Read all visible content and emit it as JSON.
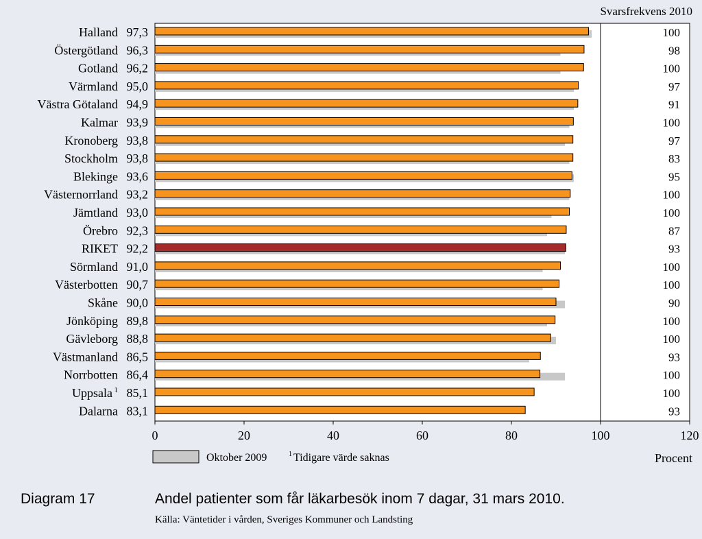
{
  "chart_data": {
    "type": "bar",
    "orientation": "horizontal",
    "categories": [
      "Halland",
      "Östergötland",
      "Gotland",
      "Värmland",
      "Västra Götaland",
      "Kalmar",
      "Kronoberg",
      "Stockholm",
      "Blekinge",
      "Västernorrland",
      "Jämtland",
      "Örebro",
      "RIKET",
      "Sörmland",
      "Västerbotten",
      "Skåne",
      "Jönköping",
      "Gävleborg",
      "Västmanland",
      "Norrbotten",
      "Uppsala",
      "Dalarna"
    ],
    "category_superscripts": [
      "",
      "",
      "",
      "",
      "",
      "",
      "",
      "",
      "",
      "",
      "",
      "",
      "",
      "",
      "",
      "",
      "",
      "",
      "",
      "",
      "1",
      ""
    ],
    "value_labels": [
      "97,3",
      "96,3",
      "96,2",
      "95,0",
      "94,9",
      "93,9",
      "93,8",
      "93,8",
      "93,6",
      "93,2",
      "93,0",
      "92,3",
      "92,2",
      "91,0",
      "90,7",
      "90,0",
      "89,8",
      "88,8",
      "86,5",
      "86,4",
      "85,1",
      "83,1"
    ],
    "series": [
      {
        "values": [
          97.3,
          96.3,
          96.2,
          95.0,
          94.9,
          93.9,
          93.8,
          93.8,
          93.6,
          93.2,
          93.0,
          92.3,
          92.2,
          91.0,
          90.7,
          90.0,
          89.8,
          88.8,
          86.5,
          86.4,
          85.1,
          83.1
        ]
      },
      {
        "name": "Oktober 2009",
        "values": [
          98,
          91,
          91,
          94,
          94,
          93,
          92,
          93,
          94,
          93,
          89,
          88,
          92,
          87,
          87,
          92,
          88,
          90,
          84,
          92,
          null,
          null
        ]
      }
    ],
    "highlight_category": "RIKET",
    "response_rate_header": "Svarsfrekvens 2010",
    "response_rates": [
      "100",
      "98",
      "100",
      "97",
      "91",
      "100",
      "97",
      "83",
      "95",
      "100",
      "100",
      "87",
      "93",
      "100",
      "100",
      "90",
      "100",
      "100",
      "93",
      "100",
      "100",
      "93"
    ],
    "xlim": [
      0,
      120
    ],
    "xticks": [
      "0",
      "20",
      "40",
      "60",
      "80",
      "100",
      "120"
    ],
    "xlabel": "Procent",
    "legend": [
      {
        "label": "Oktober 2009"
      },
      {
        "label": "Tidigare värde saknas",
        "superscript": "1"
      }
    ],
    "colors": {
      "current": "#f7941d",
      "highlight": "#a52a2a",
      "previous": "#c8c8c8",
      "background": "#e9ebf2"
    }
  },
  "caption": {
    "label": "Diagram 17",
    "title": "Andel patienter som får läkarbesök inom 7 dagar, 31 mars 2010.",
    "source": "Källa: Väntetider i vården, Sveriges Kommuner och Landsting"
  }
}
